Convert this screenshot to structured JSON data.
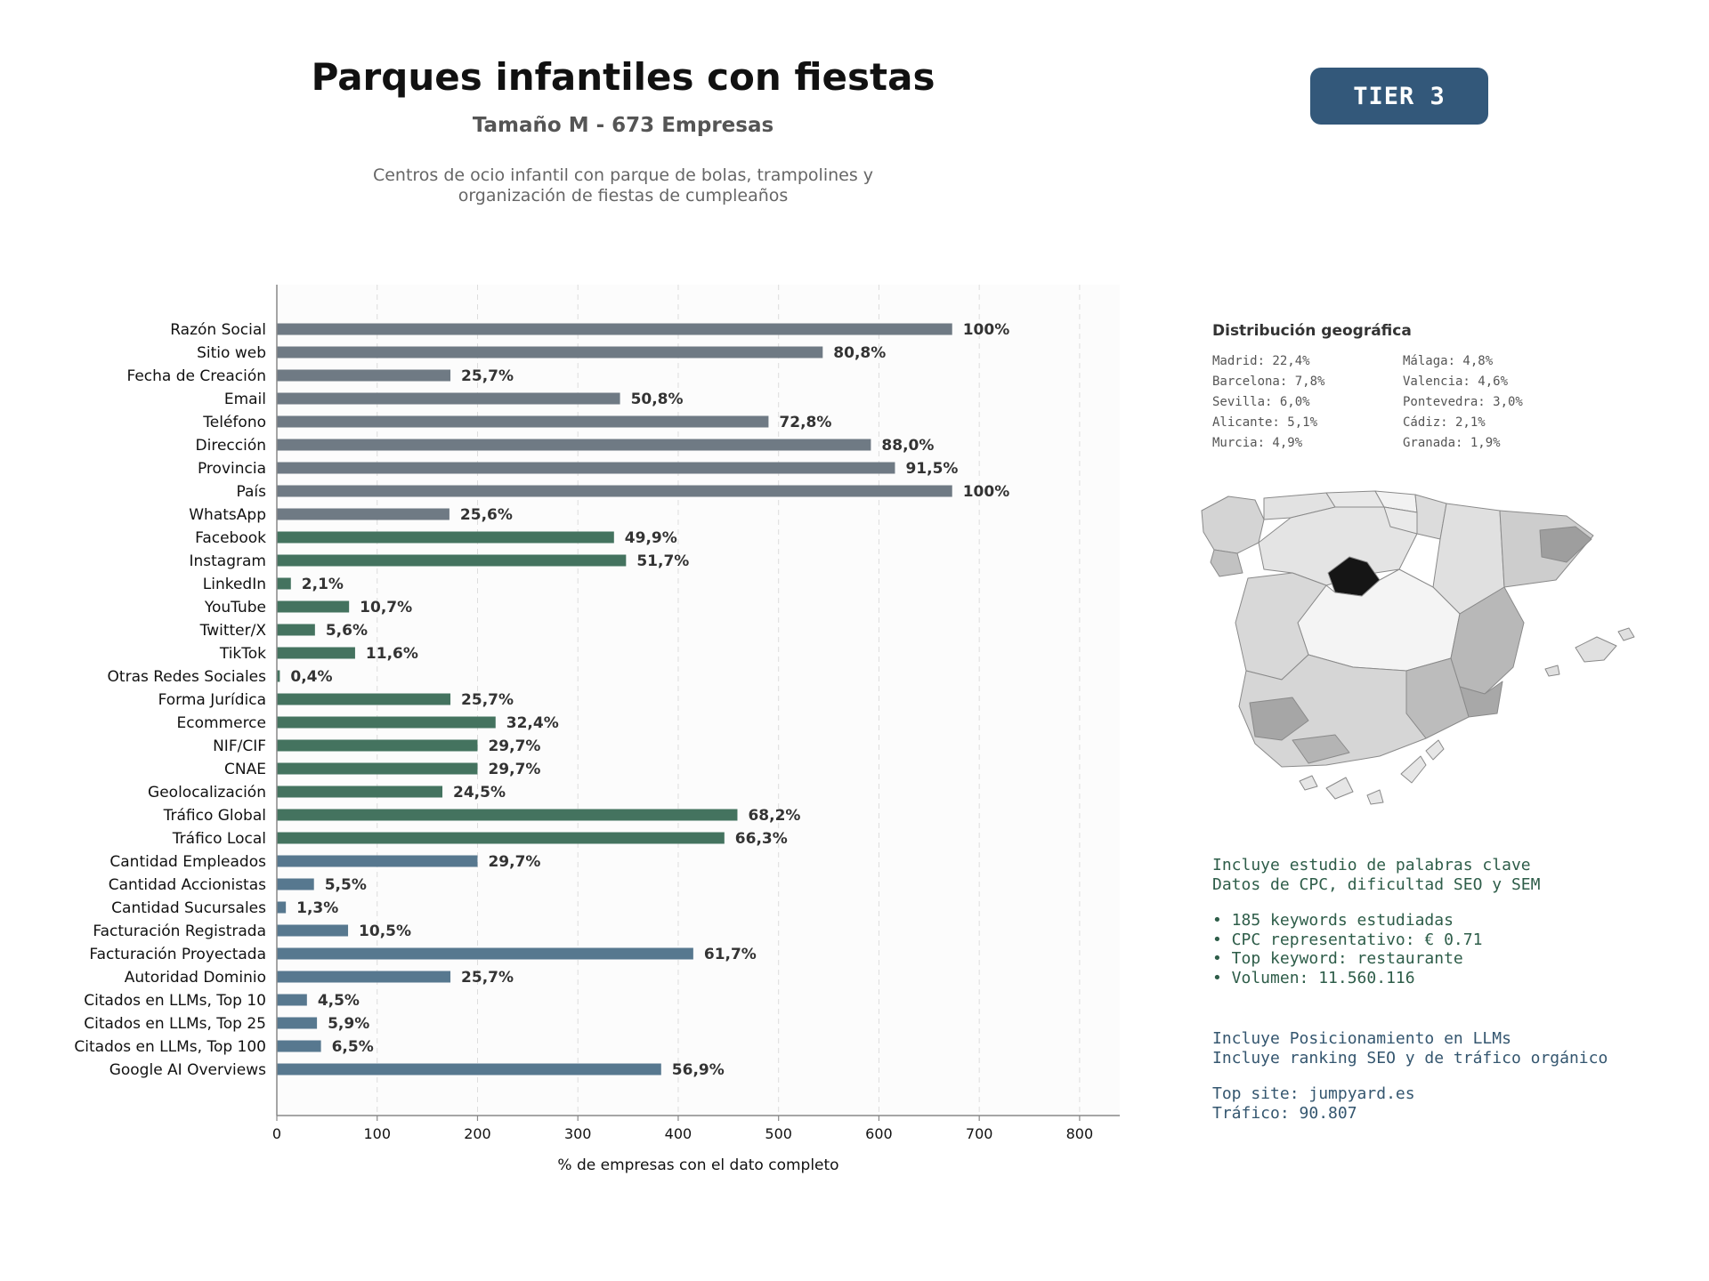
{
  "header": {
    "title": "Parques infantiles con fiestas",
    "subtitle": "Tamaño M - 673 Empresas",
    "description_line1": "Centros de ocio infantil con parque de bolas, trampolines y",
    "description_line2": "organización de fiestas de cumpleaños",
    "tier_badge": "TIER 3"
  },
  "colors": {
    "gray": "#6f7a84",
    "green": "#44735f",
    "blue": "#57788f",
    "badge": "#33587a"
  },
  "chart_data": {
    "type": "bar",
    "orientation": "horizontal",
    "xlabel": "% de empresas con el dato completo",
    "ylabel": "",
    "title": "",
    "xlim": [
      0,
      840
    ],
    "xticks": [
      0,
      100,
      200,
      300,
      400,
      500,
      600,
      700,
      800
    ],
    "grid": "vertical dashed",
    "bars": [
      {
        "label": "Razón Social",
        "value": 673,
        "pct": "100%",
        "group": "gray"
      },
      {
        "label": "Sitio web",
        "value": 544,
        "pct": "80,8%",
        "group": "gray"
      },
      {
        "label": "Fecha de Creación",
        "value": 173,
        "pct": "25,7%",
        "group": "gray"
      },
      {
        "label": "Email",
        "value": 342,
        "pct": "50,8%",
        "group": "gray"
      },
      {
        "label": "Teléfono",
        "value": 490,
        "pct": "72,8%",
        "group": "gray"
      },
      {
        "label": "Dirección",
        "value": 592,
        "pct": "88,0%",
        "group": "gray"
      },
      {
        "label": "Provincia",
        "value": 616,
        "pct": "91,5%",
        "group": "gray"
      },
      {
        "label": "País",
        "value": 673,
        "pct": "100%",
        "group": "gray"
      },
      {
        "label": "WhatsApp",
        "value": 172,
        "pct": "25,6%",
        "group": "gray"
      },
      {
        "label": "Facebook",
        "value": 336,
        "pct": "49,9%",
        "group": "green"
      },
      {
        "label": "Instagram",
        "value": 348,
        "pct": "51,7%",
        "group": "green"
      },
      {
        "label": "LinkedIn",
        "value": 14,
        "pct": "2,1%",
        "group": "green"
      },
      {
        "label": "YouTube",
        "value": 72,
        "pct": "10,7%",
        "group": "green"
      },
      {
        "label": "Twitter/X",
        "value": 38,
        "pct": "5,6%",
        "group": "green"
      },
      {
        "label": "TikTok",
        "value": 78,
        "pct": "11,6%",
        "group": "green"
      },
      {
        "label": "Otras Redes Sociales",
        "value": 3,
        "pct": "0,4%",
        "group": "green"
      },
      {
        "label": "Forma Jurídica",
        "value": 173,
        "pct": "25,7%",
        "group": "green"
      },
      {
        "label": "Ecommerce",
        "value": 218,
        "pct": "32,4%",
        "group": "green"
      },
      {
        "label": "NIF/CIF",
        "value": 200,
        "pct": "29,7%",
        "group": "green"
      },
      {
        "label": "CNAE",
        "value": 200,
        "pct": "29,7%",
        "group": "green"
      },
      {
        "label": "Geolocalización",
        "value": 165,
        "pct": "24,5%",
        "group": "green"
      },
      {
        "label": "Tráfico Global",
        "value": 459,
        "pct": "68,2%",
        "group": "green"
      },
      {
        "label": "Tráfico Local",
        "value": 446,
        "pct": "66,3%",
        "group": "green"
      },
      {
        "label": "Cantidad Empleados",
        "value": 200,
        "pct": "29,7%",
        "group": "blue"
      },
      {
        "label": "Cantidad Accionistas",
        "value": 37,
        "pct": "5,5%",
        "group": "blue"
      },
      {
        "label": "Cantidad Sucursales",
        "value": 9,
        "pct": "1,3%",
        "group": "blue"
      },
      {
        "label": "Facturación Registrada",
        "value": 71,
        "pct": "10,5%",
        "group": "blue"
      },
      {
        "label": "Facturación Proyectada",
        "value": 415,
        "pct": "61,7%",
        "group": "blue"
      },
      {
        "label": "Autoridad Dominio",
        "value": 173,
        "pct": "25,7%",
        "group": "blue"
      },
      {
        "label": "Citados en LLMs, Top 10",
        "value": 30,
        "pct": "4,5%",
        "group": "blue"
      },
      {
        "label": "Citados en LLMs, Top 25",
        "value": 40,
        "pct": "5,9%",
        "group": "blue"
      },
      {
        "label": "Citados en LLMs, Top 100",
        "value": 44,
        "pct": "6,5%",
        "group": "blue"
      },
      {
        "label": "Google AI Overviews",
        "value": 383,
        "pct": "56,9%",
        "group": "blue"
      }
    ]
  },
  "geo": {
    "title": "Distribución geográfica",
    "items": [
      "Madrid: 22,4%",
      "Málaga: 4,8%",
      "Barcelona: 7,8%",
      "Valencia: 4,6%",
      "Sevilla: 6,0%",
      "Pontevedra: 3,0%",
      "Alicante: 5,1%",
      "Cádiz: 2,1%",
      "Murcia: 4,9%",
      "Granada: 1,9%"
    ]
  },
  "keywords": {
    "line1": "Incluye estudio de palabras clave",
    "line2": "Datos de CPC, dificultad SEO y SEM",
    "bullet1": "• 185 keywords estudiadas",
    "bullet2": "• CPC representativo: € 0.71",
    "bullet3": "• Top keyword: restaurante",
    "bullet4": "• Volumen: 11.560.116"
  },
  "llm": {
    "line1": "Incluye Posicionamiento en LLMs",
    "line2": "Incluye ranking SEO y de tráfico orgánico",
    "site": "Top site: jumpyard.es",
    "traffic": "Tráfico: 90.807"
  }
}
